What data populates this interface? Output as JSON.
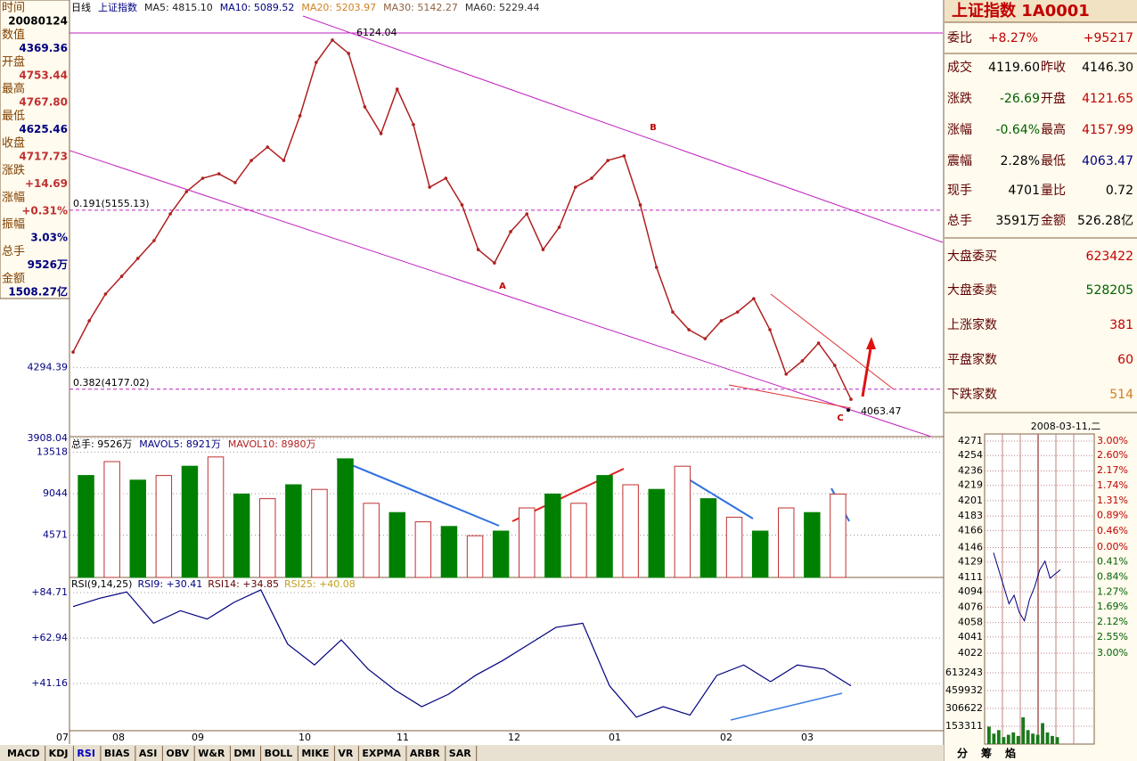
{
  "info_panel": {
    "labels": [
      "时间",
      "数值",
      "开盘",
      "最高",
      "最低",
      "收盘",
      "涨跌",
      "涨幅",
      "振幅",
      "总手",
      "金额"
    ],
    "values": [
      "20080124",
      "4369.36",
      "4753.44",
      "4767.80",
      "4625.46",
      "4717.73",
      "+14.69",
      "+0.31%",
      "3.03%",
      "9526万",
      "1508.27亿"
    ]
  },
  "chart_data": [
    {
      "type": "line",
      "title": "日线",
      "subtitle": "上证指数",
      "legend_texts": [
        {
          "text": "MA5: 4815.10",
          "color": "#202020"
        },
        {
          "text": "MA10: 5089.52",
          "color": "#000080"
        },
        {
          "text": "MA20: 5203.97",
          "color": "#d08020"
        },
        {
          "text": "MA30: 5142.27",
          "color": "#906040"
        },
        {
          "text": "MA60: 5229.44",
          "color": "#303030"
        }
      ],
      "categories": [
        null,
        null,
        null,
        null,
        null,
        null,
        null,
        null,
        null,
        null,
        null,
        null,
        null,
        null,
        null,
        null,
        null,
        null,
        null,
        null,
        null,
        null,
        null,
        null,
        null,
        null,
        null,
        null,
        null,
        null,
        null,
        null,
        null,
        null,
        null,
        null,
        null,
        null,
        null,
        null,
        null,
        null,
        null,
        null,
        null,
        null,
        null,
        null,
        null
      ],
      "values": [
        4380,
        4551,
        4697,
        4794,
        4892,
        4989,
        5135,
        5257,
        5330,
        5354,
        5306,
        5427,
        5500,
        5427,
        5671,
        5963,
        6085,
        6012,
        5720,
        5574,
        5817,
        5623,
        5281,
        5330,
        5184,
        4940,
        4867,
        5038,
        5135,
        4940,
        5062,
        5281,
        5330,
        5427,
        5452,
        5184,
        4843,
        4599,
        4502,
        4453,
        4551,
        4599,
        4672,
        4502,
        4259,
        4332,
        4429,
        4307,
        4122
      ],
      "color": "#b02020",
      "ylim": [
        3908.04,
        6304
      ],
      "yticks": [
        4294.39,
        3908.04
      ],
      "levels": [
        {
          "value": 6124.04,
          "label": "6124.04"
        },
        {
          "value": 5155.13,
          "label": "0.191(5155.13)"
        },
        {
          "value": 4177.02,
          "label": "0.382(4177.02)"
        },
        {
          "value": 4063.47,
          "label": "4063.47"
        }
      ],
      "annotations": [
        "A",
        "B",
        "C"
      ]
    },
    {
      "type": "bar",
      "legend_texts": [
        {
          "text": "总手: 9526万",
          "color": "#000000"
        },
        {
          "text": "MAVOL5: 8921万",
          "color": "#000080"
        },
        {
          "text": "MAVOL10: 8980万",
          "color": "#b02020"
        }
      ],
      "categories": [
        null,
        null,
        null,
        null,
        null,
        null,
        null,
        null,
        null,
        null,
        null,
        null,
        null,
        null,
        null,
        null,
        null,
        null,
        null,
        null,
        null,
        null,
        null,
        null,
        null,
        null,
        null,
        null,
        null,
        null
      ],
      "values": [
        11000,
        12500,
        10500,
        11000,
        12000,
        13000,
        9000,
        8500,
        10000,
        9500,
        12800,
        8000,
        7000,
        6000,
        5500,
        4500,
        5000,
        7500,
        9000,
        8000,
        11000,
        10000,
        9500,
        12000,
        8500,
        6500,
        5000,
        7500,
        7000,
        9000
      ],
      "colors": [
        "#008000",
        "#c03030"
      ],
      "ylim": [
        0,
        15000
      ],
      "yticks": [
        4571,
        9044,
        13518
      ]
    },
    {
      "type": "line",
      "legend_texts": [
        {
          "text": "RSI(9,14,25)",
          "color": "#000000"
        },
        {
          "text": "RSI9: +30.41",
          "color": "#000080"
        },
        {
          "text": "RSI14: +34.85",
          "color": "#600000"
        },
        {
          "text": "RSI25: +40.08",
          "color": "#c0a020"
        }
      ],
      "categories": [
        null,
        null,
        null,
        null,
        null,
        null,
        null,
        null,
        null,
        null,
        null,
        null,
        null,
        null,
        null,
        null,
        null,
        null,
        null,
        null,
        null,
        null,
        null,
        null,
        null,
        null,
        null,
        null,
        null,
        null
      ],
      "values": [
        78,
        82,
        85,
        70,
        76,
        72,
        80,
        86,
        60,
        50,
        62,
        48,
        38,
        30,
        36,
        45,
        52,
        60,
        68,
        70,
        40,
        25,
        30,
        26,
        45,
        50,
        42,
        50,
        48,
        40
      ],
      "color": "#000080",
      "ylim": [
        18.5,
        91.1
      ],
      "yticks": [
        {
          "value": 84.71,
          "label": "+84.71"
        },
        {
          "value": 62.94,
          "label": "+62.94"
        },
        {
          "value": 41.16,
          "label": "+41.16"
        }
      ],
      "x_tick_labels": [
        "07",
        "08",
        "09",
        "10",
        "11",
        "12",
        "01",
        "02",
        "03"
      ]
    },
    {
      "type": "line",
      "title": "2008-03-11,二",
      "categories": [
        null,
        null,
        null,
        null,
        null,
        null,
        null,
        null,
        null,
        null,
        null,
        null,
        null,
        null
      ],
      "values": [
        4140,
        4120,
        4100,
        4080,
        4090,
        4070,
        4060,
        4085,
        4100,
        4120,
        4130,
        4110,
        4115,
        4120
      ],
      "color": "#000080",
      "ylim": [
        4022,
        4271
      ],
      "yticks": [
        4271,
        4254,
        4236,
        4219,
        4201,
        4183,
        4166,
        4146,
        4129,
        4111,
        4094,
        4076,
        4058,
        4041,
        4022
      ],
      "y2ticks": [
        {
          "value": 3,
          "label": "3.00%"
        },
        {
          "value": 2.6,
          "label": "2.60%"
        },
        {
          "value": 2.17,
          "label": "2.17%"
        },
        {
          "value": 1.74,
          "label": "1.74%"
        },
        {
          "value": 1.31,
          "label": "1.31%"
        },
        {
          "value": 0.89,
          "label": "0.89%"
        },
        {
          "value": 0.46,
          "label": "0.46%"
        },
        {
          "value": 0,
          "label": "0.00%"
        },
        {
          "value": -0.41,
          "label": "0.41%"
        },
        {
          "value": -0.84,
          "label": "0.84%"
        },
        {
          "value": -1.27,
          "label": "1.27%"
        },
        {
          "value": -1.69,
          "label": "1.69%"
        },
        {
          "value": -2.12,
          "label": "2.12%"
        },
        {
          "value": -2.55,
          "label": "2.55%"
        },
        {
          "value": -3,
          "label": "3.00%"
        }
      ],
      "y2lim": [
        -3,
        3
      ]
    },
    {
      "type": "bar",
      "categories": [
        null,
        null,
        null,
        null,
        null,
        null,
        null,
        null,
        null,
        null,
        null,
        null,
        null,
        null,
        null
      ],
      "values": [
        150000,
        90000,
        120000,
        60000,
        80000,
        100000,
        70000,
        230000,
        120000,
        90000,
        80000,
        180000,
        100000,
        70000,
        60000
      ],
      "color": "#1a7a1a",
      "ylim": [
        0,
        728218
      ],
      "yticks": [
        613243,
        459932,
        306622,
        153311
      ]
    }
  ],
  "indicator_tabs": [
    "MACD",
    "KDJ",
    "RSI",
    "BIAS",
    "ASI",
    "OBV",
    "W&R",
    "DMI",
    "BOLL",
    "MIKE",
    "VR",
    "EXPMA",
    "ARBR",
    "SAR"
  ],
  "quote_panel": {
    "title": "上证指数 1A0001",
    "pair_rows": [
      [
        "委比",
        "+8.27%",
        "+95217"
      ],
      [
        "成交",
        "4119.60",
        "昨收",
        "4146.30"
      ],
      [
        "涨跌",
        "-26.69",
        "开盘",
        "4121.65"
      ],
      [
        "涨幅",
        "-0.64%",
        "最高",
        "4157.99"
      ],
      [
        "震幅",
        "2.28%",
        "最低",
        "4063.47"
      ],
      [
        "现手",
        "4701",
        "量比",
        "0.72"
      ],
      [
        "总手",
        "3591万",
        "金额",
        "526.28亿"
      ]
    ],
    "single_rows": [
      [
        "大盘委买",
        "623422"
      ],
      [
        "大盘委卖",
        "528205"
      ],
      [
        "上涨家数",
        "381"
      ],
      [
        "平盘家数",
        "60"
      ],
      [
        "下跌家数",
        "514"
      ]
    ]
  },
  "side_tabs": [
    "分",
    "筹",
    "焰"
  ]
}
